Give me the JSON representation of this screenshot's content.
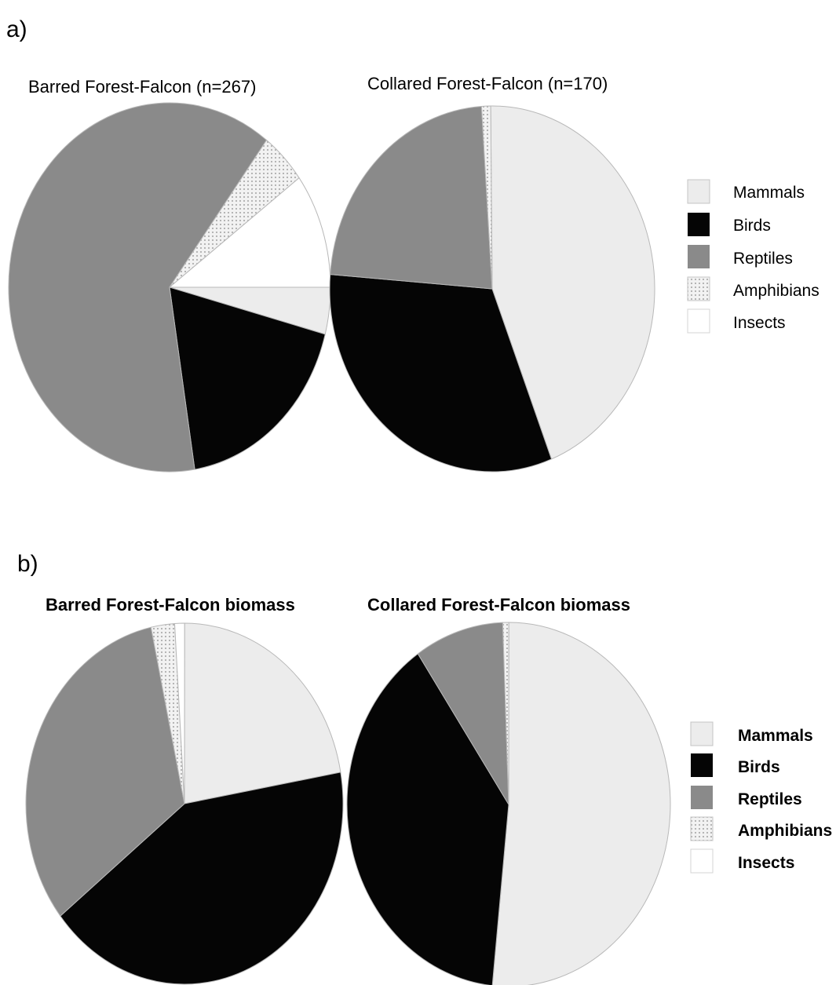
{
  "panels": [
    {
      "label": "a)"
    },
    {
      "label": "b)"
    }
  ],
  "categories": [
    "Mammals",
    "Birds",
    "Reptiles",
    "Amphibians",
    "Insects"
  ],
  "colors": {
    "Mammals": "#ececec",
    "Birds": "#050505",
    "Reptiles": "#8a8a8a",
    "Amphibians": "#dcdcdc",
    "Insects": "#ffffff",
    "edge": "#b8b8b8"
  },
  "chart_data": [
    {
      "type": "pie",
      "title": "Barred Forest-Falcon (n=267)",
      "categories": [
        "Mammals",
        "Birds",
        "Reptiles",
        "Amphibians",
        "Insects"
      ],
      "values": [
        4.1,
        18.4,
        62.8,
        4.6,
        10.1
      ]
    },
    {
      "type": "pie",
      "title": "Collared Forest-Falcon (n=170)",
      "categories": [
        "Mammals",
        "Birds",
        "Reptiles",
        "Amphibians",
        "Insects"
      ],
      "values": [
        44.2,
        32.2,
        22.7,
        0.9,
        0.0
      ]
    },
    {
      "type": "pie",
      "title": "Barred Forest-Falcon biomass",
      "categories": [
        "Mammals",
        "Birds",
        "Reptiles",
        "Amphibians",
        "Insects"
      ],
      "values": [
        22.2,
        42.1,
        32.3,
        2.4,
        1.0
      ]
    },
    {
      "type": "pie",
      "title": "Collared Forest-Falcon biomass",
      "categories": [
        "Mammals",
        "Birds",
        "Reptiles",
        "Amphibians",
        "Insects"
      ],
      "values": [
        51.6,
        38.9,
        8.9,
        0.6,
        0.0
      ]
    }
  ]
}
